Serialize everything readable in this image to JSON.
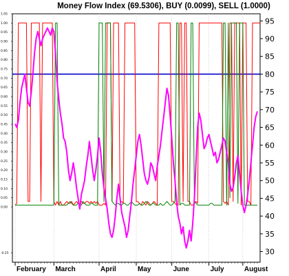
{
  "chart_data": {
    "type": "line",
    "title": "Money Flow Index (69.5306), BUY (0.0099), SELL (1.0000)",
    "xlabel": "",
    "ylabel": "",
    "x_tick_labels": [
      "February",
      "March",
      "April",
      "May",
      "June",
      "July",
      "August"
    ],
    "x_tick_index": [
      0,
      24,
      52,
      75,
      97,
      120,
      141
    ],
    "y_right": {
      "ylim": [
        27,
        97
      ],
      "ticks": [
        30,
        35,
        40,
        45,
        50,
        55,
        60,
        65,
        70,
        75,
        80,
        85,
        90,
        95
      ],
      "tick_labels": [
        "30",
        "35",
        "40",
        "45",
        "50",
        "55",
        "60",
        "65",
        "70",
        "75",
        "80",
        "85",
        "90",
        "95"
      ]
    },
    "y_left": {
      "ylim": [
        -0.3,
        1.05
      ],
      "ticks": [
        -0.25,
        0.0,
        0.05,
        0.1,
        0.15,
        0.2,
        0.25,
        0.3,
        0.35,
        0.4,
        0.45,
        0.5,
        0.55,
        0.6,
        0.65,
        0.7,
        0.75,
        0.8,
        0.85,
        0.9,
        0.95,
        1.0,
        1.05
      ],
      "tick_labels": [
        "-0.25",
        "0.00",
        "0.05",
        "0.10",
        "0.15",
        "0.20",
        "0.25",
        "0.30",
        "0.35",
        "0.40",
        "0.45",
        "0.50",
        "0.55",
        "0.60",
        "0.65",
        "0.70",
        "0.75",
        "0.80",
        "0.85",
        "0.90",
        "0.95",
        "1.00",
        "1.05"
      ]
    },
    "reference_line": {
      "value": 80,
      "color": "#0000cc"
    },
    "series": [
      {
        "name": "Money Flow Index",
        "axis": "right",
        "color": "#ff00ff",
        "values": [
          66,
          65,
          67,
          72,
          76,
          78,
          80,
          76,
          72,
          71,
          75,
          80,
          86,
          90,
          92,
          90,
          88,
          90,
          91,
          92,
          93,
          92,
          91,
          93,
          92,
          86,
          78,
          73,
          69,
          66,
          62,
          61,
          58,
          53,
          50,
          52,
          55,
          52,
          48,
          45,
          42,
          46,
          48,
          50,
          54,
          57,
          61,
          57,
          53,
          50,
          53,
          57,
          62,
          58,
          52,
          48,
          45,
          42,
          38,
          35,
          34,
          36,
          40,
          45,
          49,
          45,
          41,
          39,
          37,
          34,
          36,
          40,
          44,
          49,
          53,
          57,
          61,
          63,
          60,
          56,
          52,
          50,
          49,
          51,
          55,
          54,
          52,
          50,
          54,
          57,
          60,
          64,
          68,
          72,
          76,
          74,
          68,
          62,
          55,
          50,
          44,
          40,
          38,
          35,
          37,
          33,
          31,
          33,
          36,
          33,
          38,
          45,
          55,
          65,
          69,
          67,
          63,
          59,
          60,
          62,
          63,
          61,
          59,
          57,
          58,
          55,
          56,
          58,
          60,
          62,
          61,
          58,
          55,
          49,
          47,
          48,
          51,
          55,
          57,
          52,
          47,
          43,
          41,
          43,
          46,
          50,
          55,
          60,
          65,
          68,
          69.5
        ]
      },
      {
        "name": "BUY",
        "axis": "left",
        "color": "#008000",
        "values": [
          0.01,
          0.01,
          0.01,
          0.01,
          0.01,
          0.01,
          0.01,
          0.01,
          0.01,
          0.01,
          0.01,
          0.01,
          0.01,
          0.01,
          0.01,
          0.01,
          0.01,
          0.01,
          0.01,
          0.01,
          0.01,
          0.01,
          0.01,
          0.01,
          0.01,
          1.0,
          1.0,
          0.01,
          0.01,
          0.01,
          0.01,
          0.01,
          0.01,
          0.02,
          0.03,
          0.02,
          0.01,
          0.01,
          0.01,
          0.02,
          0.01,
          0.01,
          0.03,
          0.02,
          0.01,
          0.01,
          0.01,
          0.02,
          0.02,
          0.01,
          0.01,
          0.01,
          1.0,
          1.0,
          1.0,
          0.03,
          1.0,
          1.0,
          1.0,
          1.0,
          0.03,
          0.02,
          0.01,
          0.02,
          0.02,
          0.01,
          0.01,
          0.02,
          0.02,
          0.01,
          0.01,
          0.02,
          0.03,
          0.02,
          0.01,
          0.01,
          0.01,
          0.02,
          0.01,
          0.01,
          0.02,
          0.03,
          0.02,
          0.01,
          0.01,
          0.02,
          0.02,
          0.01,
          0.01,
          0.01,
          0.02,
          0.01,
          0.01,
          0.02,
          0.03,
          0.02,
          0.01,
          0.01,
          0.02,
          0.03,
          1.0,
          1.0,
          0.01,
          0.02,
          0.02,
          0.01,
          0.01,
          0.01,
          0.01,
          1.0,
          1.0,
          0.03,
          0.02,
          0.01,
          0.01,
          0.01,
          0.01,
          0.01,
          0.01,
          0.01,
          0.01,
          0.02,
          0.02,
          0.01,
          0.01,
          0.01,
          0.01,
          0.01,
          0.01,
          1.0,
          1.0,
          0.01,
          1.0,
          0.05,
          1.0,
          1.0,
          1.0,
          1.0,
          0.02,
          1.0,
          1.0,
          1.0,
          0.01,
          0.01,
          0.01,
          0.01,
          0.01,
          0.01,
          0.01,
          0.01,
          0.0099
        ]
      },
      {
        "name": "SELL",
        "axis": "left",
        "color": "#ff0000",
        "values": [
          0.01,
          0.02,
          1.0,
          1.0,
          1.0,
          1.0,
          1.0,
          1.0,
          0.03,
          0.03,
          1.0,
          1.0,
          1.0,
          1.0,
          1.0,
          1.0,
          0.03,
          1.0,
          1.0,
          1.0,
          1.0,
          1.0,
          1.0,
          1.0,
          0.03,
          0.01,
          0.03,
          0.01,
          0.03,
          0.01,
          0.01,
          0.02,
          0.03,
          0.02,
          0.02,
          0.03,
          0.01,
          0.02,
          0.03,
          0.02,
          0.01,
          0.03,
          0.02,
          0.02,
          0.03,
          0.03,
          0.02,
          0.03,
          0.02,
          0.03,
          0.02,
          0.03,
          0.01,
          0.01,
          0.01,
          0.02,
          0.01,
          1.0,
          1.0,
          1.0,
          0.03,
          1.0,
          1.0,
          1.0,
          1.0,
          0.03,
          0.03,
          0.02,
          1.0,
          1.0,
          1.0,
          1.0,
          1.0,
          1.0,
          1.0,
          0.03,
          0.03,
          0.02,
          0.01,
          0.03,
          0.02,
          0.01,
          0.03,
          0.02,
          0.01,
          0.02,
          0.03,
          0.02,
          0.01,
          1.0,
          1.0,
          1.0,
          1.0,
          1.0,
          1.0,
          1.0,
          1.0,
          0.03,
          0.03,
          0.02,
          0.01,
          0.01,
          1.0,
          1.0,
          0.03,
          1.0,
          1.0,
          0.03,
          0.03,
          0.01,
          0.01,
          0.02,
          0.03,
          0.02,
          1.0,
          1.0,
          1.0,
          1.0,
          1.0,
          1.0,
          1.0,
          1.0,
          1.0,
          1.0,
          1.0,
          1.0,
          1.0,
          1.0,
          1.0,
          0.03,
          0.02,
          0.03,
          0.01,
          1.0,
          1.0,
          0.03,
          1.0,
          1.0,
          1.0,
          1.0,
          0.01,
          1.0,
          1.0,
          1.0,
          0.03,
          0.03,
          0.01,
          1.0,
          1.0,
          1.0,
          1.0,
          1.0,
          1.0
        ]
      }
    ]
  }
}
